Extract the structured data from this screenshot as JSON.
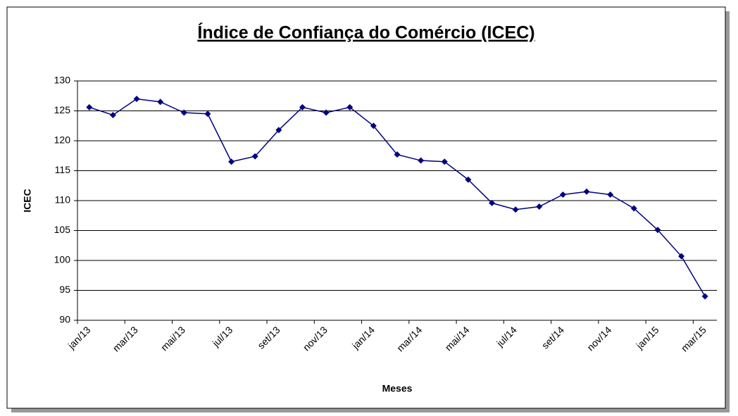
{
  "chart_data": {
    "type": "line",
    "title": "Índice de Confiança do Comércio (ICEC)",
    "x_label": "Meses",
    "y_label": "ICEC",
    "categories": [
      "jan/13",
      null,
      "mar/13",
      null,
      "mai/13",
      null,
      "jul/13",
      null,
      "set/13",
      null,
      "nov/13",
      null,
      "jan/14",
      null,
      "mar/14",
      null,
      "mai/14",
      null,
      "jul/14",
      null,
      "set/14",
      null,
      "nov/14",
      null,
      "jan/15",
      null,
      "mar/15"
    ],
    "series": [
      {
        "name": "ICEC",
        "color": "#000080",
        "values": [
          125.6,
          124.3,
          127.0,
          126.5,
          124.7,
          124.5,
          116.5,
          117.4,
          121.8,
          125.6,
          124.7,
          125.6,
          122.5,
          117.7,
          116.7,
          116.5,
          113.5,
          109.6,
          108.5,
          109.0,
          111.0,
          111.5,
          111.0,
          108.7,
          105.1,
          100.7,
          94.0
        ]
      }
    ],
    "ylim": [
      90,
      130
    ],
    "yticks": [
      90,
      95,
      100,
      105,
      110,
      115,
      120,
      125,
      130
    ],
    "grid": true
  }
}
